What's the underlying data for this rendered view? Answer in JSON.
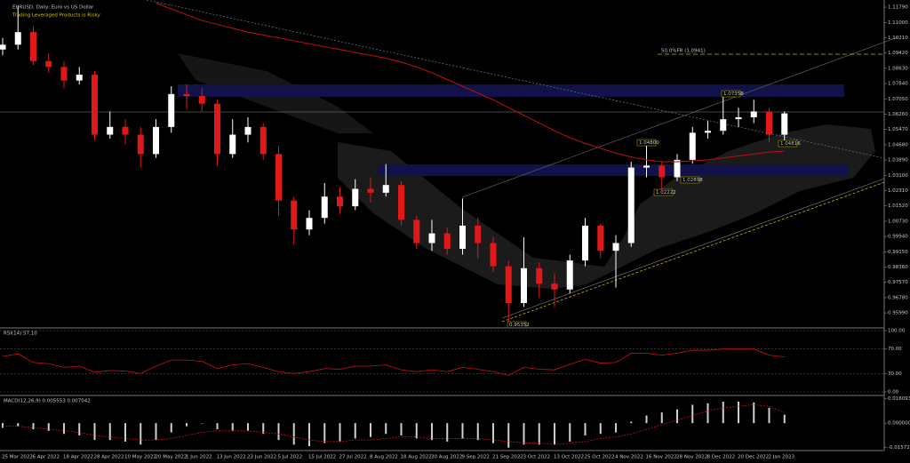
{
  "chart_data": [
    {
      "type": "candlestick",
      "title": "EURUSD, Daily: Euro vs US Dollar",
      "subtitle": "Trading Leveraged Products is Risky",
      "annotations": [
        "50.0%FR (1.0941)",
        "1.07358",
        "1.04800",
        "1.02898",
        "1.02222",
        "1.04816",
        "0.95352"
      ],
      "x_labels": [
        "25 Mar 2022",
        "6 Apr 2022",
        "18 Apr 2022",
        "28 Apr 2022",
        "10 May 2022",
        "20 May 2022",
        "1 Jun 2022",
        "13 Jun 2022",
        "23 Jun 2022",
        "5 Jul 2022",
        "15 Jul 2022",
        "27 Jul 2022",
        "8 Aug 2022",
        "18 Aug 2022",
        "30 Aug 2022",
        "9 Sep 2022",
        "21 Sep 2022",
        "3 Oct 2022",
        "13 Oct 2022",
        "25 Oct 2022",
        "4 Nov 2022",
        "16 Nov 2022",
        "28 Nov 2022",
        "8 Dec 2022",
        "20 Dec 2022",
        "2 Jan 2023"
      ],
      "open": [
        1.096,
        1.0985,
        1.105,
        1.09,
        1.087,
        1.08,
        1.083,
        1.052,
        1.056,
        1.052,
        1.042,
        1.056,
        1.073,
        1.072,
        1.068,
        1.042,
        1.052,
        1.056,
        1.042,
        1.018,
        1.003,
        1.009,
        1.02,
        1.015,
        1.024,
        1.022,
        1.026,
        1.008,
        0.996,
        1.001,
        0.993,
        1.005,
        0.996,
        0.984,
        0.965,
        0.983,
        0.975,
        0.972,
        0.987,
        1.005,
        0.992,
        0.996,
        1.035,
        1.036,
        1.03,
        1.039,
        1.053,
        1.054,
        1.06,
        1.061,
        1.064,
        1.052
      ],
      "high": [
        1.102,
        1.1185,
        1.108,
        1.094,
        1.09,
        1.087,
        1.085,
        1.064,
        1.06,
        1.056,
        1.06,
        1.077,
        1.078,
        1.076,
        1.07,
        1.06,
        1.061,
        1.058,
        1.046,
        1.02,
        1.013,
        1.027,
        1.025,
        1.029,
        1.03,
        1.0368,
        1.028,
        1.01,
        1.008,
        1.004,
        1.019,
        1.009,
        0.999,
        0.987,
        0.999,
        0.986,
        0.98,
        0.99,
        1.009,
        1.006,
        1.0,
        1.038,
        1.048,
        1.038,
        1.042,
        1.056,
        1.059,
        1.0736,
        1.066,
        1.07,
        1.066,
        1.064
      ],
      "low": [
        1.093,
        1.096,
        1.088,
        1.084,
        1.076,
        1.078,
        1.049,
        1.05,
        1.047,
        1.035,
        1.04,
        1.053,
        1.065,
        1.064,
        1.036,
        1.04,
        1.048,
        1.039,
        1.01,
        0.9952,
        1.0,
        1.006,
        1.011,
        1.013,
        1.017,
        1.02,
        1.005,
        0.993,
        0.992,
        0.99,
        0.99,
        0.988,
        0.981,
        0.9535,
        0.963,
        0.968,
        0.963,
        0.97,
        0.984,
        0.988,
        0.973,
        0.994,
        1.03,
        1.0222,
        1.028,
        1.037,
        1.05,
        1.052,
        1.056,
        1.058,
        1.0482,
        1.048
      ],
      "close": [
        1.0985,
        1.105,
        1.09,
        1.087,
        1.08,
        1.083,
        1.052,
        1.056,
        1.052,
        1.042,
        1.056,
        1.073,
        1.072,
        1.068,
        1.042,
        1.052,
        1.056,
        1.042,
        1.018,
        1.003,
        1.009,
        1.02,
        1.015,
        1.024,
        1.022,
        1.026,
        1.008,
        0.996,
        1.001,
        0.993,
        1.005,
        0.996,
        0.984,
        0.965,
        0.983,
        0.975,
        0.972,
        0.987,
        1.005,
        0.992,
        0.996,
        1.035,
        1.036,
        1.03,
        1.039,
        1.053,
        1.054,
        1.06,
        1.061,
        1.064,
        1.052,
        1.063
      ],
      "up_color": "#ffffff",
      "down_color": "#e01818",
      "ma": {
        "color": "#c01010",
        "values": [
          null,
          null,
          null,
          null,
          null,
          null,
          null,
          null,
          null,
          null,
          1.12,
          1.117,
          1.114,
          1.111,
          1.109,
          1.107,
          1.105,
          1.1035,
          1.102,
          1.1005,
          1.099,
          1.0975,
          1.096,
          1.0945,
          1.093,
          1.0915,
          1.0895,
          1.087,
          1.084,
          1.0805,
          1.077,
          1.0735,
          1.07,
          1.066,
          1.062,
          1.058,
          1.054,
          1.0505,
          1.0475,
          1.045,
          1.0425,
          1.0405,
          1.039,
          1.038,
          1.038,
          1.0385,
          1.039,
          1.04,
          1.041,
          1.042,
          1.043,
          1.0435
        ]
      },
      "ylim": [
        0.9526,
        1.1216
      ],
      "yticks": [
        {
          "value": 1.1179,
          "label": "1.11790"
        },
        {
          "value": 1.11,
          "label": "1.11000"
        },
        {
          "value": 1.1021,
          "label": "1.10210"
        },
        {
          "value": 1.0942,
          "label": "1.09420"
        },
        {
          "value": 1.0863,
          "label": "1.08630"
        },
        {
          "value": 1.0784,
          "label": "1.07840"
        },
        {
          "value": 1.0705,
          "label": "1.07050"
        },
        {
          "value": 1.0626,
          "label": "1.06260"
        },
        {
          "value": 1.0547,
          "label": "1.05470"
        },
        {
          "value": 1.0468,
          "label": "1.04680"
        },
        {
          "value": 1.0389,
          "label": "1.03890"
        },
        {
          "value": 1.031,
          "label": "1.03100"
        },
        {
          "value": 1.0231,
          "label": "1.02310"
        },
        {
          "value": 1.0152,
          "label": "1.01520"
        },
        {
          "value": 1.0073,
          "label": "1.00730"
        },
        {
          "value": 0.9994,
          "label": "0.99940"
        },
        {
          "value": 0.9915,
          "label": "0.99150"
        },
        {
          "value": 0.9836,
          "label": "0.98360"
        },
        {
          "value": 0.9757,
          "label": "0.97570"
        },
        {
          "value": 0.9678,
          "label": "0.96780"
        },
        {
          "value": 0.9599,
          "label": "0.95990"
        }
      ]
    },
    {
      "type": "line",
      "title": "RSI(14) 57.10",
      "color": "#d01010",
      "values": [
        58,
        62,
        48,
        46,
        40,
        42,
        32,
        35,
        34,
        30,
        42,
        52,
        52,
        50,
        38,
        44,
        46,
        40,
        33,
        30,
        33,
        38,
        37,
        42,
        42,
        44,
        36,
        33,
        36,
        33,
        40,
        37,
        33,
        27,
        40,
        37,
        36,
        45,
        53,
        47,
        48,
        63,
        63,
        60,
        63,
        68,
        68,
        70,
        70,
        70,
        60,
        57.1
      ],
      "ylim": [
        0,
        100
      ],
      "yticks": [
        {
          "value": 100,
          "label": "100.00"
        },
        {
          "value": 70,
          "label": "70.00"
        },
        {
          "value": 30,
          "label": "30.00"
        },
        {
          "value": 0,
          "label": "0.00"
        }
      ]
    },
    {
      "type": "macd",
      "title": "MACD(12,26,9) 0.005553 0.007042",
      "series": [
        {
          "color": "#d0d0d0",
          "values": [
            -0.003,
            -0.002,
            -0.004,
            -0.005,
            -0.007,
            -0.008,
            -0.011,
            -0.011,
            -0.012,
            -0.014,
            -0.011,
            -0.006,
            -0.002,
            0.0,
            -0.004,
            -0.005,
            -0.005,
            -0.007,
            -0.011,
            -0.014,
            -0.015,
            -0.013,
            -0.012,
            -0.01,
            -0.009,
            -0.007,
            -0.008,
            -0.01,
            -0.011,
            -0.012,
            -0.01,
            -0.011,
            -0.013,
            -0.016,
            -0.014,
            -0.014,
            -0.014,
            -0.012,
            -0.008,
            -0.007,
            -0.006,
            0.001,
            0.005,
            0.007,
            0.009,
            0.012,
            0.013,
            0.014,
            0.014,
            0.0135,
            0.01,
            0.005553
          ]
        },
        {
          "color": "#d01010",
          "values": [
            -0.002,
            -0.002,
            -0.003,
            -0.004,
            -0.005,
            -0.006,
            -0.008,
            -0.009,
            -0.01,
            -0.011,
            -0.011,
            -0.01,
            -0.008,
            -0.006,
            -0.005,
            -0.005,
            -0.005,
            -0.006,
            -0.007,
            -0.009,
            -0.011,
            -0.012,
            -0.012,
            -0.011,
            -0.011,
            -0.01,
            -0.009,
            -0.009,
            -0.01,
            -0.01,
            -0.01,
            -0.01,
            -0.011,
            -0.012,
            -0.013,
            -0.013,
            -0.014,
            -0.013,
            -0.012,
            -0.01,
            -0.009,
            -0.007,
            -0.004,
            -0.001,
            0.002,
            0.005,
            0.008,
            0.01,
            0.011,
            0.012,
            0.011,
            0.007042
          ]
        }
      ],
      "ylim": [
        -0.0173,
        0.0175
      ],
      "yticks": [
        0.016093,
        {
          "value": 0,
          "label": "0.000000"
        },
        -0.015723
      ]
    }
  ]
}
